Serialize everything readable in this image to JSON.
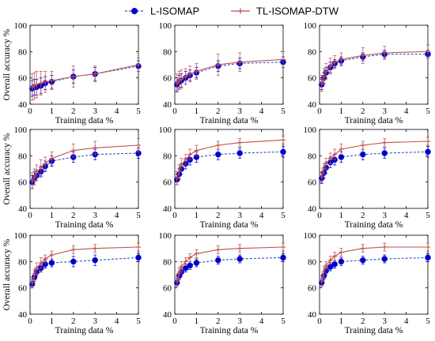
{
  "legend": {
    "position": "top-center",
    "entries": [
      {
        "name": "L-ISOMAP",
        "color": "#0000cc",
        "line_color": "#3355cc",
        "dash": true,
        "marker": "circle"
      },
      {
        "name": "TL-ISOMAP-DTW",
        "color": "#c0504d",
        "line_color": "#c0504d",
        "dash": false,
        "marker": "plus"
      }
    ]
  },
  "chart_data": [
    {
      "type": "line",
      "xlabel": "Training data %",
      "ylabel": "Overall accuracy %",
      "xlim": [
        0,
        5
      ],
      "ylim": [
        40,
        100
      ],
      "xticks": [
        0,
        1,
        2,
        3,
        4,
        5
      ],
      "yticks": [
        40,
        60,
        80,
        100
      ],
      "grid": false,
      "x": [
        0.1,
        0.2,
        0.3,
        0.5,
        0.7,
        1,
        2,
        3,
        5
      ],
      "series": [
        {
          "name": "L-ISOMAP",
          "values": [
            52,
            53,
            53,
            54,
            56,
            57,
            61,
            63,
            69
          ],
          "errors": [
            6,
            6,
            6,
            6,
            5,
            5,
            5,
            5,
            4
          ]
        },
        {
          "name": "TL-ISOMAP-DTW",
          "values": [
            53,
            54,
            55,
            56,
            57,
            58,
            61,
            63,
            70
          ],
          "errors": [
            10,
            10,
            10,
            9,
            8,
            7,
            8,
            6,
            5
          ]
        }
      ]
    },
    {
      "type": "line",
      "xlabel": "Training data %",
      "ylabel": "",
      "xlim": [
        0,
        5
      ],
      "ylim": [
        40,
        100
      ],
      "xticks": [
        0,
        1,
        2,
        3,
        4,
        5
      ],
      "yticks": [
        40,
        60,
        80,
        100
      ],
      "grid": false,
      "x": [
        0.1,
        0.2,
        0.3,
        0.5,
        0.7,
        1,
        2,
        3,
        5
      ],
      "series": [
        {
          "name": "L-ISOMAP",
          "values": [
            55,
            57,
            58,
            60,
            62,
            64,
            69,
            71,
            72
          ],
          "errors": [
            5,
            5,
            5,
            5,
            4,
            4,
            4,
            4,
            4
          ]
        },
        {
          "name": "TL-ISOMAP-DTW",
          "values": [
            56,
            58,
            59,
            61,
            63,
            65,
            70,
            72,
            74
          ],
          "errors": [
            7,
            7,
            7,
            6,
            6,
            6,
            8,
            7,
            6
          ]
        }
      ]
    },
    {
      "type": "line",
      "xlabel": "Training data %",
      "ylabel": "",
      "xlim": [
        0,
        5
      ],
      "ylim": [
        40,
        100
      ],
      "xticks": [
        0,
        1,
        2,
        3,
        4,
        5
      ],
      "yticks": [
        40,
        60,
        80,
        100
      ],
      "grid": false,
      "x": [
        0.1,
        0.2,
        0.3,
        0.5,
        0.7,
        1,
        2,
        3,
        5
      ],
      "series": [
        {
          "name": "L-ISOMAP",
          "values": [
            55,
            60,
            64,
            68,
            71,
            73,
            76,
            78,
            78
          ],
          "errors": [
            4,
            4,
            4,
            4,
            3,
            3,
            3,
            3,
            3
          ]
        },
        {
          "name": "TL-ISOMAP-DTW",
          "values": [
            56,
            61,
            65,
            69,
            72,
            74,
            77,
            79,
            80
          ],
          "errors": [
            6,
            6,
            6,
            6,
            5,
            5,
            6,
            5,
            5
          ]
        }
      ]
    },
    {
      "type": "line",
      "xlabel": "Training data %",
      "ylabel": "Overall accuracy %",
      "xlim": [
        0,
        5
      ],
      "ylim": [
        40,
        100
      ],
      "xticks": [
        0,
        1,
        2,
        3,
        4,
        5
      ],
      "yticks": [
        40,
        60,
        80,
        100
      ],
      "grid": false,
      "x": [
        0.1,
        0.2,
        0.3,
        0.5,
        0.7,
        1,
        2,
        3,
        5
      ],
      "series": [
        {
          "name": "L-ISOMAP",
          "values": [
            60,
            63,
            65,
            68,
            72,
            76,
            79,
            81,
            82
          ],
          "errors": [
            5,
            5,
            4,
            4,
            4,
            4,
            4,
            4,
            4
          ]
        },
        {
          "name": "TL-ISOMAP-DTW",
          "values": [
            61,
            64,
            67,
            71,
            74,
            78,
            84,
            86,
            88
          ],
          "errors": [
            6,
            6,
            6,
            6,
            5,
            5,
            5,
            5,
            5
          ]
        }
      ]
    },
    {
      "type": "line",
      "xlabel": "Training data %",
      "ylabel": "",
      "xlim": [
        0,
        5
      ],
      "ylim": [
        40,
        100
      ],
      "xticks": [
        0,
        1,
        2,
        3,
        4,
        5
      ],
      "yticks": [
        40,
        60,
        80,
        100
      ],
      "grid": false,
      "x": [
        0.1,
        0.2,
        0.3,
        0.5,
        0.7,
        1,
        2,
        3,
        5
      ],
      "series": [
        {
          "name": "L-ISOMAP",
          "values": [
            62,
            66,
            70,
            74,
            77,
            79,
            81,
            82,
            83
          ],
          "errors": [
            4,
            4,
            4,
            4,
            4,
            4,
            4,
            4,
            4
          ]
        },
        {
          "name": "TL-ISOMAP-DTW",
          "values": [
            63,
            68,
            73,
            77,
            81,
            84,
            88,
            90,
            92
          ],
          "errors": [
            5,
            5,
            5,
            4,
            4,
            4,
            3,
            3,
            3
          ]
        }
      ]
    },
    {
      "type": "line",
      "xlabel": "Training data %",
      "ylabel": "",
      "xlim": [
        0,
        5
      ],
      "ylim": [
        40,
        100
      ],
      "xticks": [
        0,
        1,
        2,
        3,
        4,
        5
      ],
      "yticks": [
        40,
        60,
        80,
        100
      ],
      "grid": false,
      "x": [
        0.1,
        0.2,
        0.3,
        0.5,
        0.7,
        1,
        2,
        3,
        5
      ],
      "series": [
        {
          "name": "L-ISOMAP",
          "values": [
            63,
            67,
            71,
            75,
            77,
            79,
            81,
            82,
            83
          ],
          "errors": [
            4,
            4,
            4,
            4,
            4,
            4,
            4,
            4,
            4
          ]
        },
        {
          "name": "TL-ISOMAP-DTW",
          "values": [
            64,
            70,
            74,
            78,
            81,
            85,
            88,
            90,
            91
          ],
          "errors": [
            4,
            4,
            4,
            4,
            4,
            4,
            3,
            3,
            3
          ]
        }
      ]
    },
    {
      "type": "line",
      "xlabel": "Training data %",
      "ylabel": "Overall accuracy %",
      "xlim": [
        0,
        5
      ],
      "ylim": [
        40,
        100
      ],
      "xticks": [
        0,
        1,
        2,
        3,
        4,
        5
      ],
      "yticks": [
        40,
        60,
        80,
        100
      ],
      "grid": false,
      "x": [
        0.1,
        0.2,
        0.3,
        0.5,
        0.7,
        1,
        2,
        3,
        5
      ],
      "series": [
        {
          "name": "L-ISOMAP",
          "values": [
            63,
            68,
            72,
            75,
            78,
            79,
            80,
            81,
            83
          ],
          "errors": [
            3,
            3,
            3,
            3,
            3,
            3,
            4,
            4,
            3
          ]
        },
        {
          "name": "TL-ISOMAP-DTW",
          "values": [
            64,
            70,
            75,
            79,
            82,
            85,
            89,
            90,
            91
          ],
          "errors": [
            4,
            4,
            4,
            4,
            3,
            3,
            3,
            3,
            3
          ]
        }
      ]
    },
    {
      "type": "line",
      "xlabel": "Training data %",
      "ylabel": "",
      "xlim": [
        0,
        5
      ],
      "ylim": [
        40,
        100
      ],
      "xticks": [
        0,
        1,
        2,
        3,
        4,
        5
      ],
      "yticks": [
        40,
        60,
        80,
        100
      ],
      "grid": false,
      "x": [
        0.1,
        0.2,
        0.3,
        0.5,
        0.7,
        1,
        2,
        3,
        5
      ],
      "series": [
        {
          "name": "L-ISOMAP",
          "values": [
            64,
            69,
            72,
            75,
            77,
            79,
            81,
            82,
            83
          ],
          "errors": [
            3,
            3,
            3,
            3,
            3,
            3,
            3,
            3,
            3
          ]
        },
        {
          "name": "TL-ISOMAP-DTW",
          "values": [
            65,
            71,
            76,
            80,
            83,
            86,
            89,
            90,
            91
          ],
          "errors": [
            4,
            4,
            4,
            3,
            3,
            3,
            3,
            3,
            3
          ]
        }
      ]
    },
    {
      "type": "line",
      "xlabel": "Training data %",
      "ylabel": "",
      "xlim": [
        0,
        5
      ],
      "ylim": [
        40,
        100
      ],
      "xticks": [
        0,
        1,
        2,
        3,
        4,
        5
      ],
      "yticks": [
        40,
        60,
        80,
        100
      ],
      "grid": false,
      "x": [
        0.1,
        0.2,
        0.3,
        0.5,
        0.7,
        1,
        2,
        3,
        5
      ],
      "series": [
        {
          "name": "L-ISOMAP",
          "values": [
            64,
            69,
            73,
            76,
            78,
            80,
            81,
            82,
            83
          ],
          "errors": [
            3,
            3,
            3,
            3,
            3,
            3,
            3,
            3,
            3
          ]
        },
        {
          "name": "TL-ISOMAP-DTW",
          "values": [
            65,
            72,
            77,
            81,
            84,
            87,
            90,
            91,
            91
          ],
          "errors": [
            4,
            4,
            3,
            3,
            3,
            3,
            3,
            3,
            3
          ]
        }
      ]
    }
  ]
}
